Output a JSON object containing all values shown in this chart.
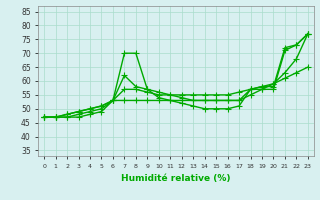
{
  "xlabel": "Humidité relative (%)",
  "ylabel_ticks": [
    35,
    40,
    45,
    50,
    55,
    60,
    65,
    70,
    75,
    80,
    85
  ],
  "xticks": [
    0,
    1,
    2,
    3,
    4,
    5,
    6,
    7,
    8,
    9,
    10,
    11,
    12,
    13,
    14,
    15,
    16,
    17,
    18,
    19,
    20,
    21,
    22,
    23
  ],
  "xlim": [
    -0.5,
    23.5
  ],
  "ylim": [
    33,
    87
  ],
  "background_color": "#d8f0f0",
  "grid_color": "#aaddcc",
  "line_color": "#00aa00",
  "line_width": 1.0,
  "marker": "+",
  "marker_size": 4,
  "marker_lw": 0.8,
  "lines": [
    [
      47,
      47,
      47,
      47,
      48,
      49,
      53,
      70,
      70,
      57,
      54,
      53,
      52,
      51,
      50,
      50,
      50,
      51,
      57,
      57,
      57,
      71,
      73,
      77
    ],
    [
      47,
      47,
      47,
      48,
      49,
      50,
      53,
      62,
      58,
      57,
      56,
      55,
      54,
      53,
      53,
      53,
      53,
      53,
      57,
      58,
      58,
      72,
      73,
      77
    ],
    [
      47,
      47,
      48,
      49,
      50,
      51,
      53,
      57,
      57,
      56,
      55,
      55,
      55,
      55,
      55,
      55,
      55,
      56,
      57,
      58,
      59,
      63,
      68,
      77
    ],
    [
      47,
      47,
      48,
      49,
      50,
      51,
      53,
      53,
      53,
      53,
      53,
      53,
      53,
      53,
      53,
      53,
      53,
      53,
      55,
      57,
      59,
      61,
      63,
      65
    ]
  ]
}
